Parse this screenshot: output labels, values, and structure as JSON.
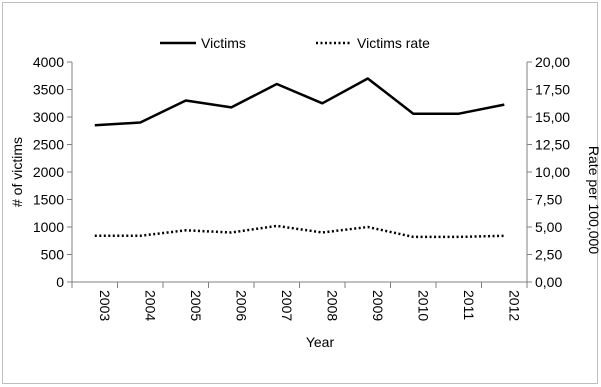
{
  "chart_data": {
    "type": "line",
    "title": "",
    "x": [
      "2003",
      "2004",
      "2005",
      "2006",
      "2007",
      "2008",
      "2009",
      "2010",
      "2011",
      "2012"
    ],
    "xlabel": "Year",
    "ylabel_left": "# of victims",
    "ylabel_right": "Rate per 100,000",
    "ylim_left": [
      0,
      4000
    ],
    "ylim_right": [
      0,
      20
    ],
    "yticks_left": [
      "0",
      "500",
      "1000",
      "1500",
      "2000",
      "2500",
      "3000",
      "3500",
      "4000"
    ],
    "yticks_right": [
      "0,00",
      "2,50",
      "5,00",
      "7,50",
      "10,00",
      "12,50",
      "15,00",
      "17,50",
      "20,00"
    ],
    "grid": false,
    "legend_position": "top",
    "series": [
      {
        "name": "Victims",
        "axis": "left",
        "style": "solid",
        "color": "#000000",
        "values": [
          2850,
          2900,
          3300,
          3175,
          3600,
          3250,
          3700,
          3060,
          3060,
          3225
        ]
      },
      {
        "name": "Victims rate",
        "axis": "right",
        "style": "dotted",
        "color": "#000000",
        "values": [
          4.2,
          4.2,
          4.7,
          4.5,
          5.1,
          4.5,
          5.0,
          4.1,
          4.1,
          4.2
        ]
      }
    ]
  }
}
